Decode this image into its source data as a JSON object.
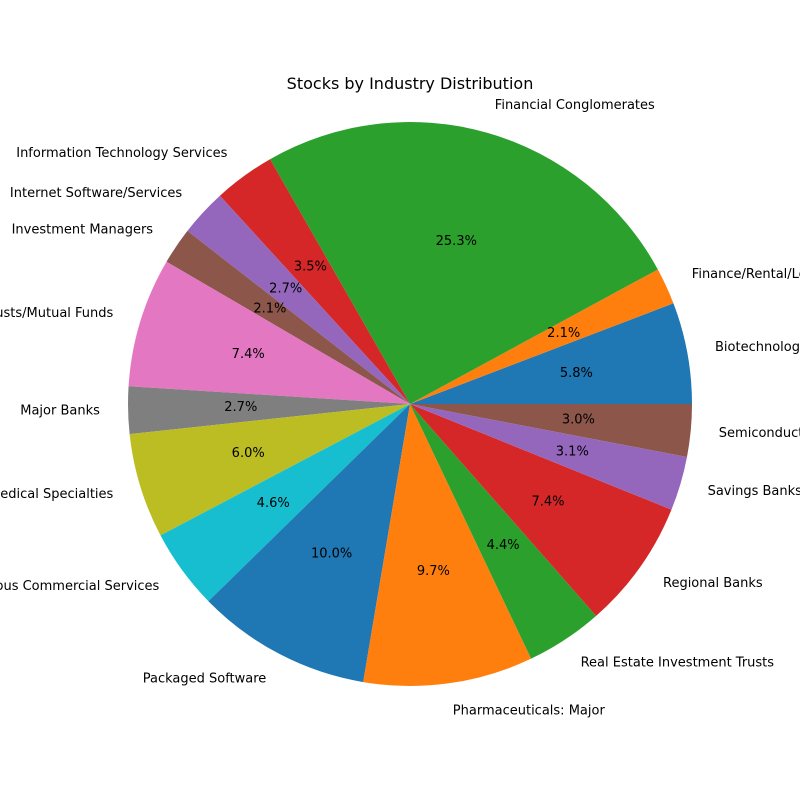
{
  "chart_data": {
    "type": "pie",
    "title": "Stocks by Industry Distribution",
    "start_angle_deg": 0,
    "direction": "counterclockwise",
    "slices": [
      {
        "label": "Biotechnology",
        "value": 5.8,
        "pct_label": "5.8%",
        "color": "#1f77b4"
      },
      {
        "label": "Finance/Rental/Leasing",
        "value": 2.1,
        "pct_label": "2.1%",
        "color": "#ff7f0e"
      },
      {
        "label": "Financial Conglomerates",
        "value": 25.3,
        "pct_label": "25.3%",
        "color": "#2ca02c"
      },
      {
        "label": "Information Technology Services",
        "value": 3.5,
        "pct_label": "3.5%",
        "color": "#d62728"
      },
      {
        "label": "Internet Software/Services",
        "value": 2.7,
        "pct_label": "2.7%",
        "color": "#9467bd"
      },
      {
        "label": "Investment Managers",
        "value": 2.1,
        "pct_label": "2.1%",
        "color": "#8c564b"
      },
      {
        "label": "Investment Trusts/Mutual Funds",
        "value": 7.4,
        "pct_label": "7.4%",
        "color": "#e377c2"
      },
      {
        "label": "Major Banks",
        "value": 2.7,
        "pct_label": "2.7%",
        "color": "#7f7f7f"
      },
      {
        "label": "Medical Specialties",
        "value": 6.0,
        "pct_label": "6.0%",
        "color": "#bcbd22"
      },
      {
        "label": "Miscellaneous Commercial Services",
        "value": 4.6,
        "pct_label": "4.6%",
        "color": "#17becf"
      },
      {
        "label": "Packaged Software",
        "value": 10.0,
        "pct_label": "10.0%",
        "color": "#1f77b4"
      },
      {
        "label": "Pharmaceuticals: Major",
        "value": 9.7,
        "pct_label": "9.7%",
        "color": "#ff7f0e"
      },
      {
        "label": "Real Estate Investment Trusts",
        "value": 4.4,
        "pct_label": "4.4%",
        "color": "#2ca02c"
      },
      {
        "label": "Regional Banks",
        "value": 7.4,
        "pct_label": "7.4%",
        "color": "#d62728"
      },
      {
        "label": "Savings Banks",
        "value": 3.1,
        "pct_label": "3.1%",
        "color": "#9467bd"
      },
      {
        "label": "Semiconductors",
        "value": 3.0,
        "pct_label": "3.0%",
        "color": "#8c564b"
      }
    ]
  }
}
